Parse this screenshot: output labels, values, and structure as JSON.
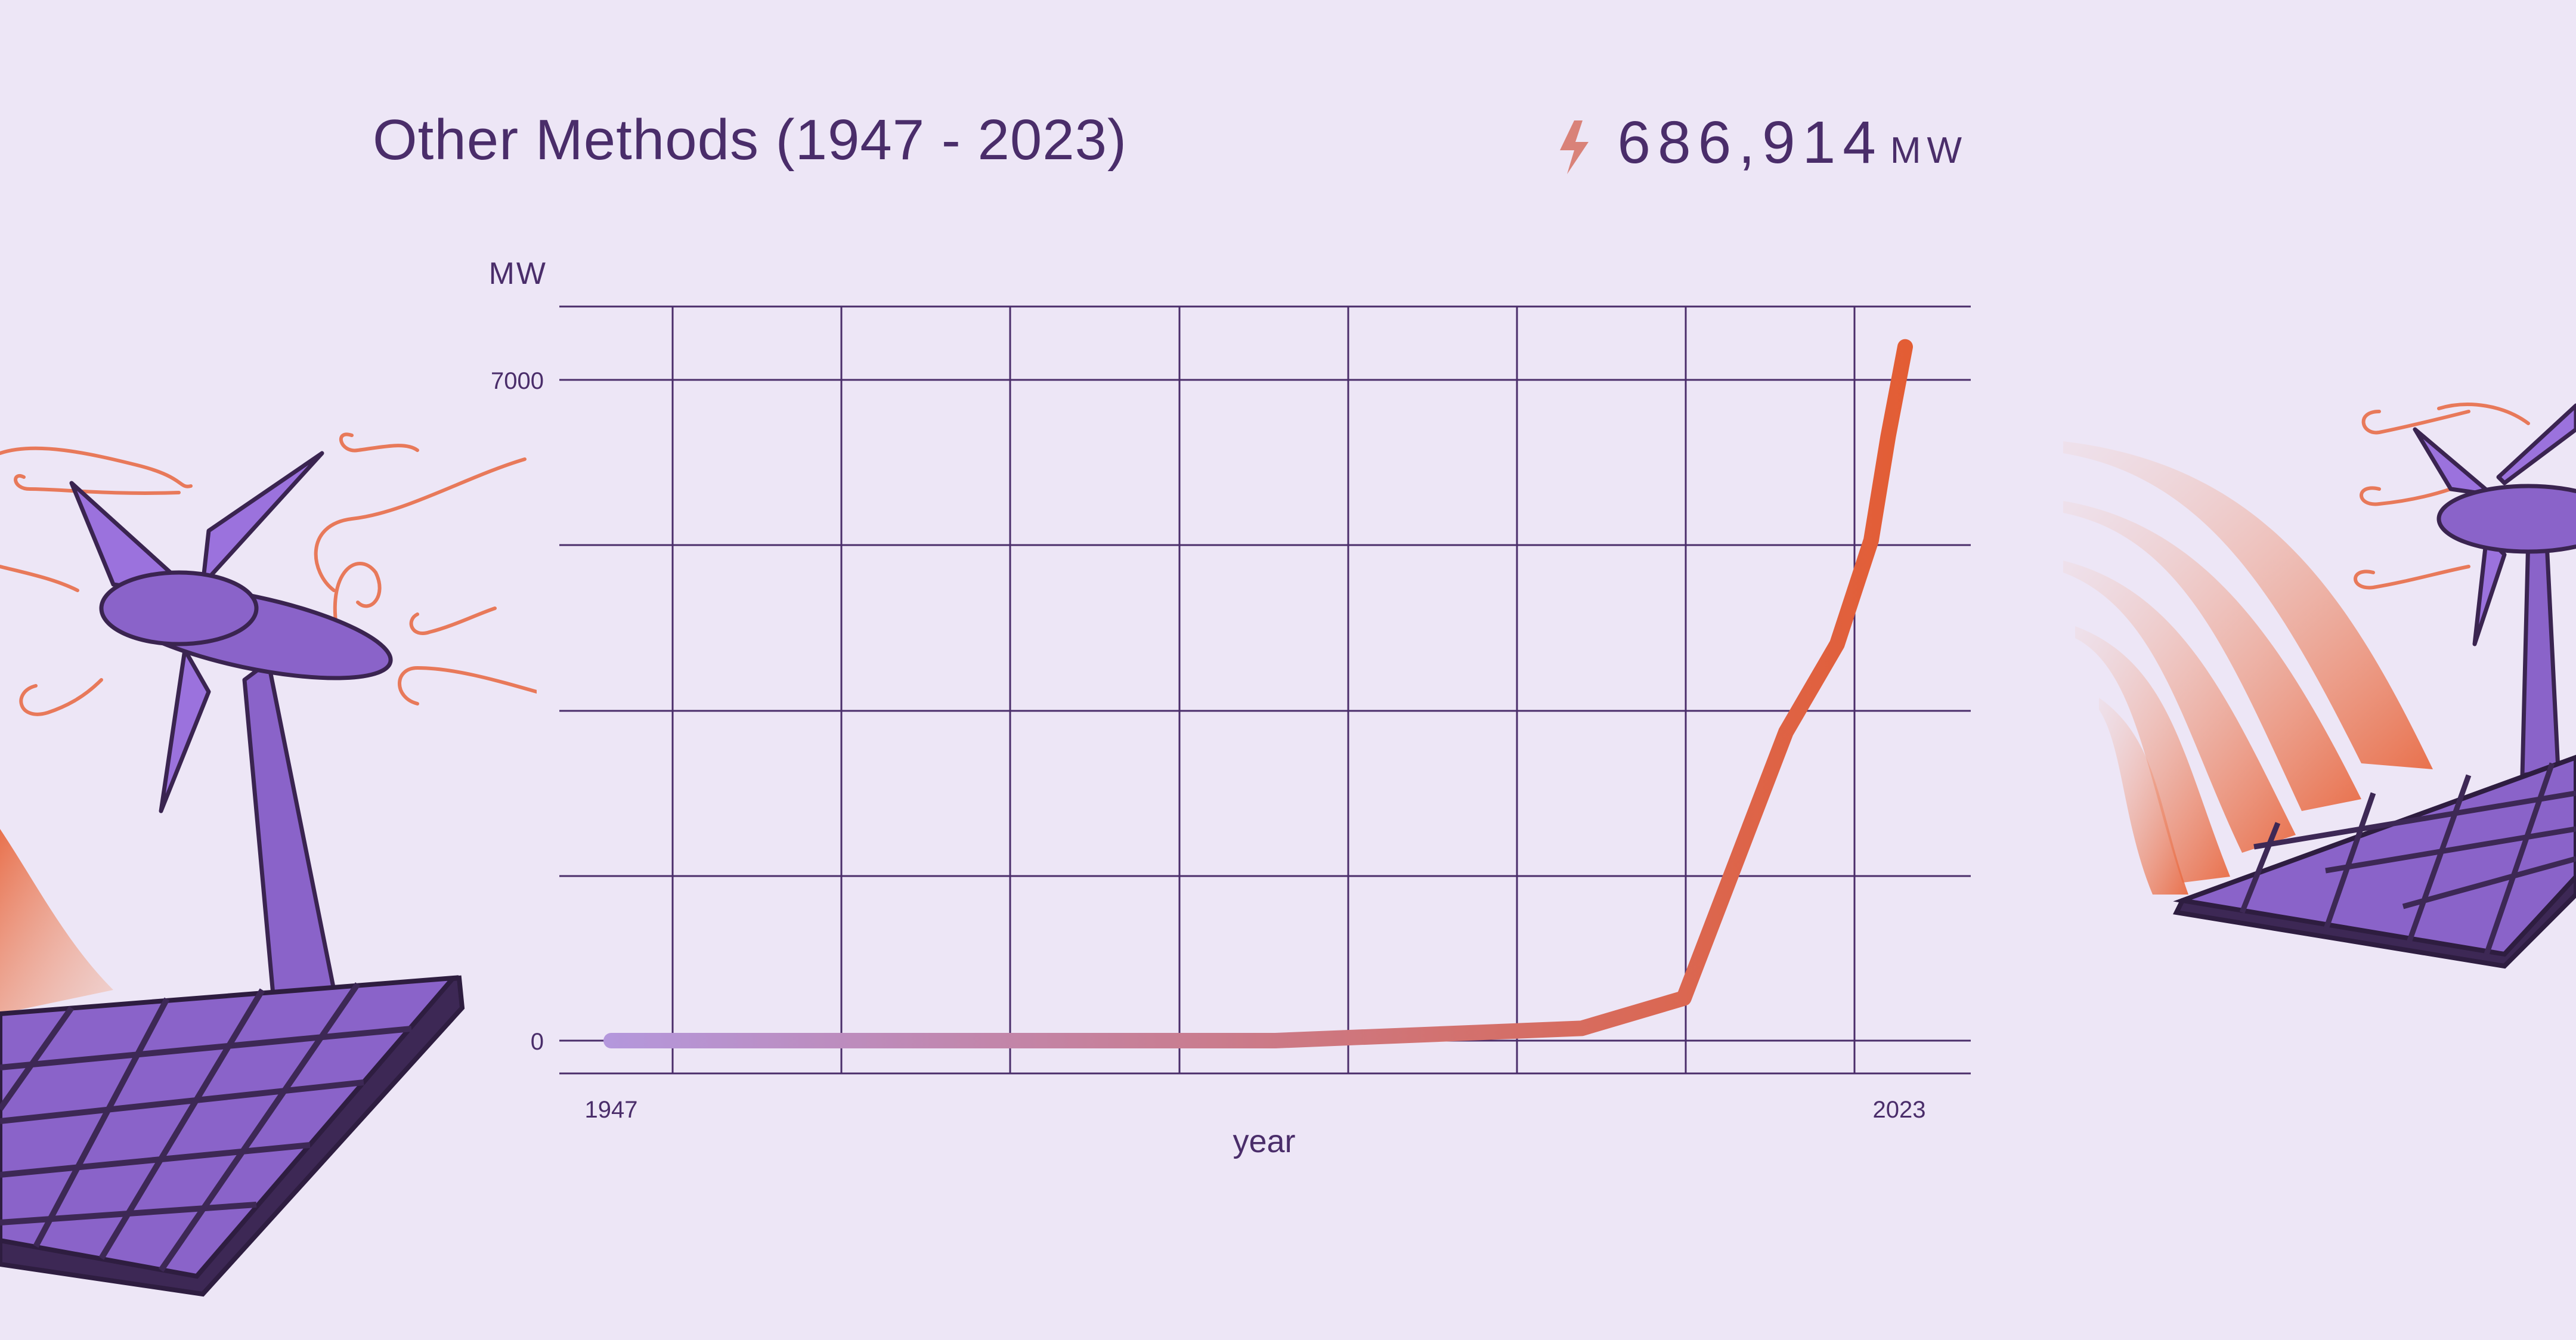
{
  "header": {
    "title": "Other Methods (1947 - 2023)",
    "total_value": "686,914",
    "total_unit": "MW",
    "icon": "lightning-bolt-icon"
  },
  "illustrations": {
    "left": "wind-turbine-solar-panel-illustration",
    "right": "wind-turbine-solar-panel-illustration"
  },
  "colors": {
    "background": "#ede6f6",
    "text": "#4a2d6a",
    "grid": "#4a2d6a",
    "line_start": "#b497dc",
    "line_end": "#e35d34"
  },
  "chart_data": {
    "type": "line",
    "title": "",
    "xlabel": "year",
    "ylabel": "MW",
    "xlim": [
      1947,
      2023
    ],
    "ylim": [
      0,
      7000
    ],
    "x_tick_labels": [
      "1947",
      "2023"
    ],
    "y_tick_labels": [
      "0",
      "7000"
    ],
    "grid": true,
    "series": [
      {
        "x": [
          1947,
          1966,
          1986,
          2004,
          2010,
          2013,
          2016,
          2019,
          2021,
          2022,
          2023
        ],
        "y": [
          0,
          0,
          0,
          130,
          450,
          1860,
          3270,
          4200,
          5300,
          6400,
          7350
        ]
      }
    ]
  }
}
